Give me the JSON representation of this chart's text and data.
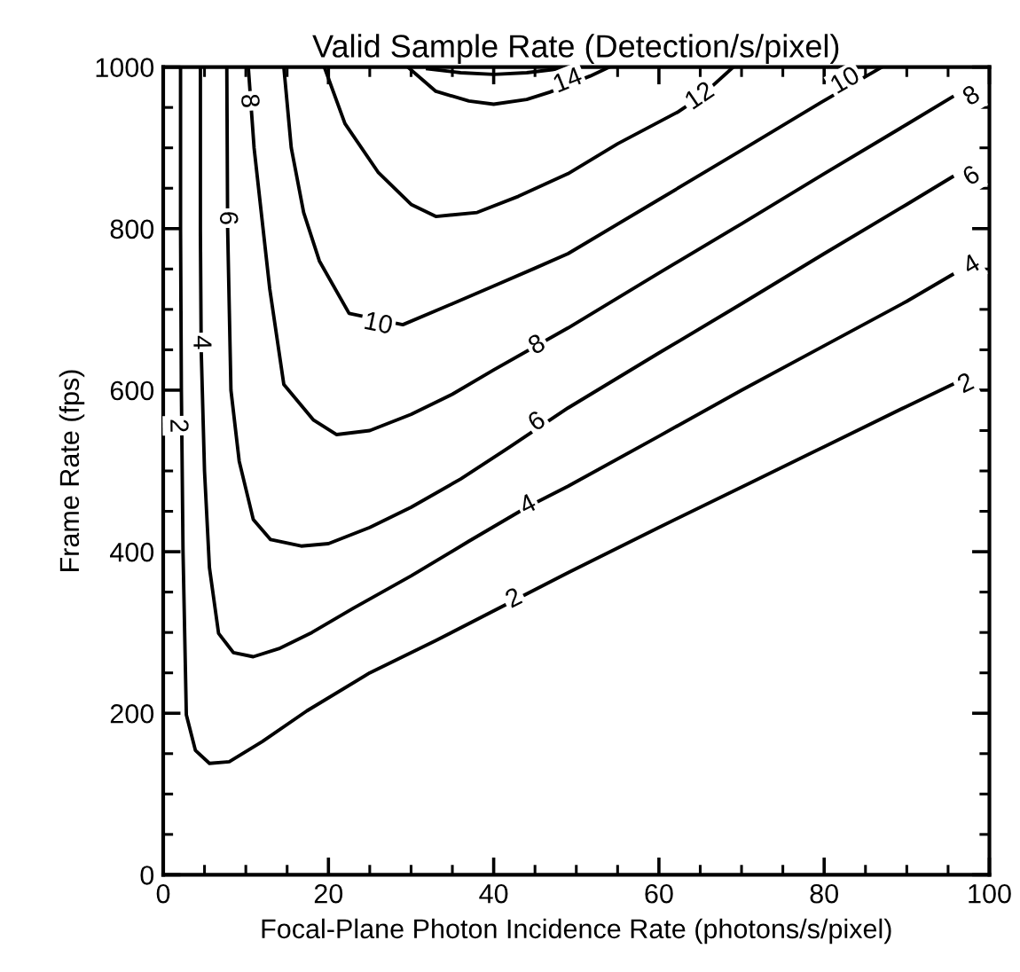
{
  "chart_data": {
    "type": "line",
    "title": "Valid Sample Rate (Detection/s/pixel)",
    "xlabel": "Focal-Plane Photon Incidence Rate (photons/s/pixel)",
    "ylabel": "Frame Rate (fps)",
    "xlim": [
      0,
      100
    ],
    "xticks": [
      0,
      20,
      40,
      60,
      80,
      100
    ],
    "ylim": [
      0,
      1000
    ],
    "yticks": [
      0,
      200,
      400,
      600,
      800,
      1000
    ],
    "grid": false,
    "marker": "none",
    "line_style": "solid",
    "series": [
      {
        "color": "#000000",
        "x": [
          2.1,
          2.1,
          2.2,
          2.4,
          2.8,
          3.9,
          5.6,
          8,
          12,
          17.4,
          25,
          33,
          49,
          60,
          71,
          80,
          90,
          95.5
        ],
        "values": [
          1000,
          800,
          600,
          400,
          198,
          154,
          138,
          140,
          165,
          203,
          250,
          290,
          374,
          430,
          485,
          530,
          580,
          607
        ]
      },
      {
        "color": "#000000",
        "x": [
          4.5,
          4.5,
          4.6,
          5.0,
          5.6,
          6.7,
          8.5,
          10.9,
          14,
          18,
          23,
          30,
          37,
          44,
          49,
          60,
          70,
          80,
          90,
          95.5
        ],
        "values": [
          1000,
          800,
          650,
          500,
          380,
          299,
          275,
          270,
          280,
          300,
          330,
          370,
          413,
          455,
          481,
          543,
          600,
          655,
          710,
          743
        ]
      },
      {
        "color": "#000000",
        "x": [
          7.7,
          7.8,
          8.2,
          9.2,
          10.9,
          13,
          16.7,
          20,
          25,
          30,
          36,
          42,
          49,
          60,
          70,
          80,
          90,
          95.5
        ],
        "values": [
          1000,
          800,
          600,
          512,
          440,
          415,
          407,
          410,
          430,
          455,
          490,
          530,
          578,
          646,
          707,
          769,
          830,
          864
        ]
      },
      {
        "color": "#000000",
        "x": [
          10.3,
          11,
          12.9,
          14.6,
          18.2,
          21,
          25,
          30,
          35,
          40,
          49,
          60,
          70,
          80,
          90,
          95.5
        ],
        "values": [
          1000,
          900,
          725,
          607,
          563,
          545,
          550,
          570,
          595,
          625,
          677,
          745,
          806,
          868,
          929,
          963
        ]
      },
      {
        "color": "#000000",
        "x": [
          14.6,
          15.5,
          17,
          18.9,
          22.5,
          29,
          35,
          40,
          45,
          49,
          60,
          70,
          79.6,
          87
        ],
        "values": [
          1000,
          900,
          820,
          760,
          695,
          681,
          707,
          729,
          751,
          769,
          836,
          897,
          956,
          1000
        ]
      },
      {
        "color": "#000000",
        "x": [
          19.5,
          22,
          26,
          30,
          33,
          38,
          43,
          49,
          55,
          62.4,
          65,
          69
        ],
        "values": [
          1000,
          930,
          870,
          830,
          815,
          820,
          840,
          868,
          905,
          945,
          963,
          1000
        ]
      },
      {
        "color": "#000000",
        "x": [
          29.6,
          33,
          37,
          40,
          44,
          46.8,
          49,
          51.7,
          54
        ],
        "values": [
          1000,
          970,
          958,
          954,
          960,
          969,
          978,
          989,
          1000
        ]
      },
      {
        "color": "#000000",
        "x": [
          32,
          36,
          40,
          44,
          48
        ],
        "values": [
          998,
          993,
          991,
          993,
          998
        ]
      }
    ],
    "annotations": [
      {
        "text": "2",
        "x": 1.7,
        "y": 556
      },
      {
        "text": "4",
        "x": 4.5,
        "y": 659
      },
      {
        "text": "6",
        "x": 7.7,
        "y": 813
      },
      {
        "text": "8",
        "x": 10.3,
        "y": 958
      },
      {
        "text": "2",
        "x": 42.5,
        "y": 341
      },
      {
        "text": "4",
        "x": 44.2,
        "y": 457
      },
      {
        "text": "6",
        "x": 45.3,
        "y": 560
      },
      {
        "text": "8",
        "x": 45.3,
        "y": 655
      },
      {
        "text": "10",
        "x": 26,
        "y": 681
      },
      {
        "text": "2",
        "x": 97.2,
        "y": 607
      },
      {
        "text": "4",
        "x": 97.9,
        "y": 754
      },
      {
        "text": "6",
        "x": 97.9,
        "y": 864
      },
      {
        "text": "8",
        "x": 97.9,
        "y": 963
      },
      {
        "text": "10",
        "x": 82.6,
        "y": 982
      },
      {
        "text": "12",
        "x": 65,
        "y": 963
      },
      {
        "text": "14",
        "x": 49,
        "y": 982
      }
    ]
  }
}
